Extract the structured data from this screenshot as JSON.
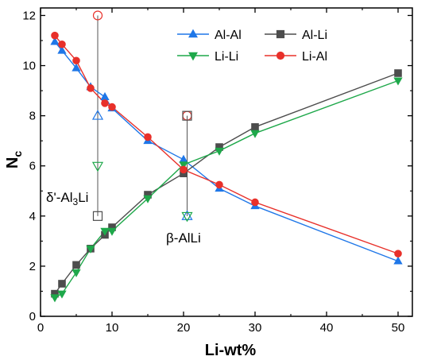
{
  "chart_data": {
    "type": "line",
    "xlabel": "Li-wt%",
    "ylabel_main": "N",
    "ylabel_sub": "c",
    "xlim": [
      0,
      52
    ],
    "ylim": [
      0,
      12.3
    ],
    "xticks": [
      0,
      10,
      20,
      30,
      40,
      50
    ],
    "yticks": [
      0,
      2,
      4,
      6,
      8,
      10,
      12
    ],
    "grid": false,
    "legend_placement": "top-right",
    "series": [
      {
        "name": "Al-Al",
        "color": "#1f77e8",
        "marker": "triangle-up",
        "x": [
          2,
          3,
          5,
          7,
          9,
          10,
          15,
          20,
          25,
          30,
          50
        ],
        "y": [
          10.95,
          10.6,
          9.9,
          9.15,
          8.75,
          8.3,
          7.0,
          6.25,
          5.1,
          4.4,
          2.2
        ]
      },
      {
        "name": "Al-Li",
        "color": "#4d4d4d",
        "marker": "square",
        "x": [
          2,
          3,
          5,
          7,
          9,
          10,
          15,
          20,
          25,
          30,
          50
        ],
        "y": [
          0.9,
          1.3,
          2.05,
          2.7,
          3.25,
          3.55,
          4.85,
          5.7,
          6.75,
          7.55,
          9.7
        ]
      },
      {
        "name": "Li-Li",
        "color": "#1ea84a",
        "marker": "triangle-down",
        "x": [
          2,
          3,
          5,
          7,
          9,
          10,
          15,
          20,
          25,
          30,
          50
        ],
        "y": [
          0.75,
          0.9,
          1.75,
          2.7,
          3.4,
          3.4,
          4.7,
          6.05,
          6.6,
          7.3,
          9.4
        ]
      },
      {
        "name": "Li-Al",
        "color": "#e8302a",
        "marker": "circle",
        "x": [
          2,
          3,
          5,
          7,
          9,
          10,
          15,
          20,
          25,
          30,
          50
        ],
        "y": [
          11.2,
          10.85,
          10.2,
          9.1,
          8.5,
          8.35,
          7.15,
          5.85,
          5.25,
          4.55,
          2.5
        ]
      }
    ],
    "reference_phases": [
      {
        "label_main": "δ'-Al",
        "label_sub": "3",
        "label_tail": "Li",
        "x": 8,
        "points": [
          {
            "series": "Li-Al",
            "y": 12
          },
          {
            "series": "Al-Al",
            "y": 8
          },
          {
            "series": "Li-Li",
            "y": 6
          },
          {
            "series": "Al-Li",
            "y": 4
          }
        ],
        "line_range": [
          4,
          12
        ]
      },
      {
        "label_main": "β-AlLi",
        "label_sub": "",
        "label_tail": "",
        "x": 20.5,
        "points": [
          {
            "series": "Li-Al",
            "y": 8
          },
          {
            "series": "Al-Li",
            "y": 8
          },
          {
            "series": "Al-Al",
            "y": 4
          },
          {
            "series": "Li-Li",
            "y": 4
          }
        ],
        "line_range": [
          4,
          8
        ]
      }
    ]
  }
}
